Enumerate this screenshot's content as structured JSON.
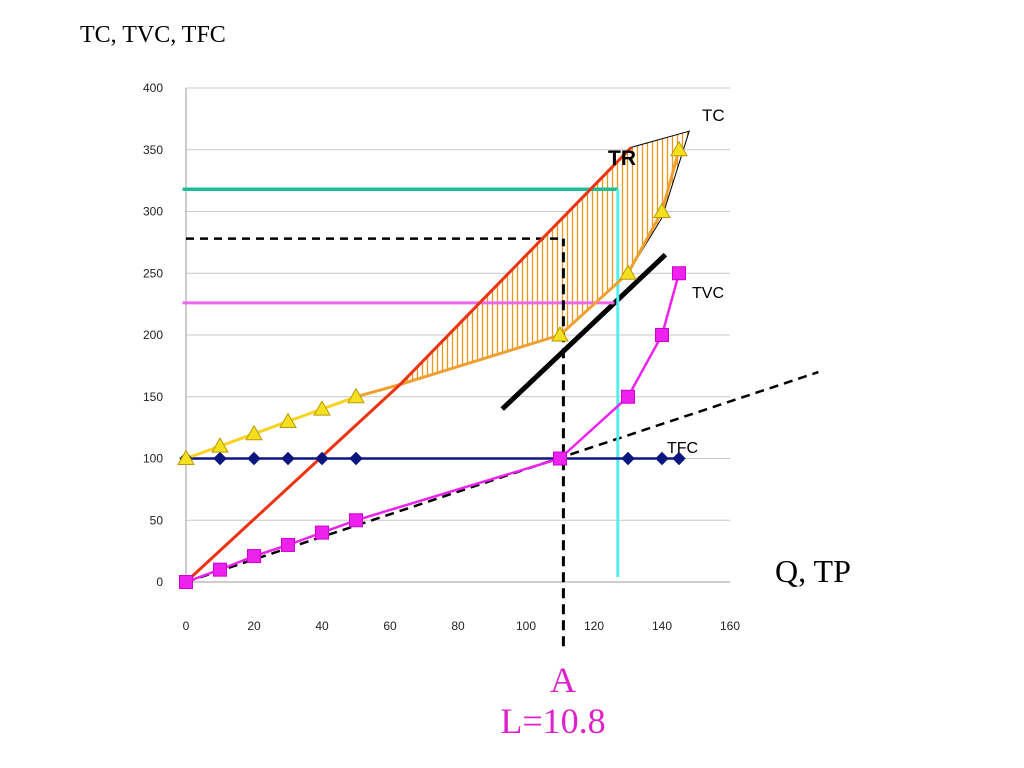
{
  "chart_data": {
    "type": "line",
    "ylabel": "TC, TVC, TFC",
    "xlabel": "Q, TP",
    "xlim": [
      0,
      160
    ],
    "ylim": [
      0,
      400
    ],
    "x_ticks": [
      0,
      20,
      40,
      60,
      80,
      100,
      120,
      140,
      160
    ],
    "y_ticks": [
      0,
      50,
      100,
      150,
      200,
      250,
      300,
      350,
      400
    ],
    "grid": "horizontal",
    "series": [
      {
        "name": "TFC",
        "color": "#0b1780",
        "marker": "diamond",
        "points": [
          [
            0,
            100
          ],
          [
            10,
            100
          ],
          [
            20,
            100
          ],
          [
            30,
            100
          ],
          [
            40,
            100
          ],
          [
            50,
            100
          ],
          [
            110,
            100
          ],
          [
            130,
            100
          ],
          [
            140,
            100
          ],
          [
            145,
            100
          ]
        ]
      },
      {
        "name": "TVC",
        "color": "#ee22ee",
        "marker": "square",
        "points": [
          [
            0,
            0
          ],
          [
            10,
            10
          ],
          [
            20,
            21
          ],
          [
            30,
            30
          ],
          [
            40,
            40
          ],
          [
            50,
            50
          ],
          [
            110,
            100
          ],
          [
            130,
            150
          ],
          [
            140,
            200
          ],
          [
            145,
            250
          ]
        ]
      },
      {
        "name": "TC",
        "color": "#f0a030",
        "marker": "triangle",
        "points": [
          [
            0,
            100
          ],
          [
            10,
            110
          ],
          [
            20,
            120
          ],
          [
            30,
            130
          ],
          [
            40,
            140
          ],
          [
            50,
            150
          ],
          [
            110,
            200
          ],
          [
            130,
            250
          ],
          [
            140,
            300
          ],
          [
            145,
            350
          ]
        ]
      },
      {
        "name": "TR",
        "color": "#ee3311",
        "points": [
          [
            0,
            0
          ],
          [
            63,
            160
          ],
          [
            131,
            352
          ]
        ]
      }
    ],
    "annotations": {
      "point_label": "A",
      "point_sublabel": "L=10.8",
      "tc_label": "TC",
      "tr_label": "TR",
      "tvc_label": "TVC",
      "tfc_label": "TFC"
    },
    "reference_lines": {
      "tangent_dashed": [
        [
          0,
          0
        ],
        [
          186,
          170
        ]
      ],
      "tangent_thick": [
        [
          93,
          140
        ],
        [
          141,
          265
        ]
      ],
      "green_horizontal": {
        "y": 318,
        "x": [
          -1,
          127
        ],
        "color": "#22bb99"
      },
      "pink_horizontal": {
        "y": 226,
        "x": [
          -1,
          126
        ],
        "color": "#ee66ee"
      },
      "cyan_vertical": {
        "x": 127,
        "y": [
          4,
          318
        ],
        "color": "#55eeee"
      },
      "black_dashed_horizontal": {
        "y": 278,
        "x": [
          0,
          111
        ]
      },
      "black_dashed_vertical": {
        "x": 111,
        "y": [
          -52,
          278
        ]
      }
    },
    "shaded_region": [
      [
        63,
        160
      ],
      [
        131,
        352
      ],
      [
        148,
        365
      ],
      [
        140,
        295
      ],
      [
        130,
        250
      ],
      [
        110,
        200
      ],
      [
        63,
        160
      ]
    ]
  }
}
